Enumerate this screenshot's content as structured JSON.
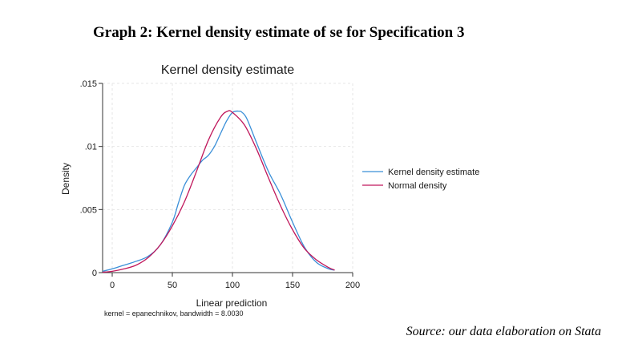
{
  "document": {
    "title": "Graph 2: Kernel density estimate of se for Specification 3",
    "source": "Source: our data elaboration on Stata"
  },
  "chart_data": {
    "type": "line",
    "title": "Kernel density estimate",
    "xlabel": "Linear prediction",
    "ylabel": "Density",
    "note": "kernel = epanechnikov, bandwidth = 8.0030",
    "xlim": [
      -8,
      200
    ],
    "ylim": [
      0,
      0.015
    ],
    "x_ticks": [
      0,
      50,
      100,
      150,
      200
    ],
    "x_tick_labels": [
      "0",
      "50",
      "100",
      "150",
      "200"
    ],
    "y_ticks": [
      0,
      0.005,
      0.01,
      0.015
    ],
    "y_tick_labels": [
      "0",
      ".005",
      ".01",
      ".015"
    ],
    "grid": true,
    "legend": "right",
    "series": [
      {
        "name": "Kernel density estimate",
        "color": "#3a8fd8",
        "x": [
          -8,
          0,
          10,
          20,
          30,
          40,
          50,
          55,
          60,
          65,
          70,
          75,
          80,
          85,
          90,
          95,
          100,
          105,
          108,
          112,
          120,
          130,
          140,
          150,
          160,
          170,
          180,
          185
        ],
        "y": [
          0.0001,
          0.0003,
          0.0006,
          0.0009,
          0.0013,
          0.0022,
          0.004,
          0.0055,
          0.0069,
          0.0077,
          0.0083,
          0.0089,
          0.0093,
          0.01,
          0.011,
          0.012,
          0.0127,
          0.0128,
          0.0127,
          0.0122,
          0.0103,
          0.008,
          0.0062,
          0.004,
          0.002,
          0.0008,
          0.0003,
          0.0002
        ]
      },
      {
        "name": "Normal density",
        "color": "#c0185c",
        "x": [
          -8,
          0,
          10,
          20,
          30,
          40,
          50,
          60,
          70,
          80,
          90,
          96,
          100,
          110,
          120,
          130,
          140,
          150,
          160,
          170,
          180,
          185
        ],
        "y": [
          3e-05,
          0.0001,
          0.0003,
          0.0006,
          0.0012,
          0.0022,
          0.0037,
          0.0056,
          0.008,
          0.0105,
          0.0123,
          0.0128,
          0.0127,
          0.0117,
          0.0098,
          0.0075,
          0.0053,
          0.0034,
          0.0019,
          0.001,
          0.0004,
          0.0002
        ]
      }
    ]
  }
}
